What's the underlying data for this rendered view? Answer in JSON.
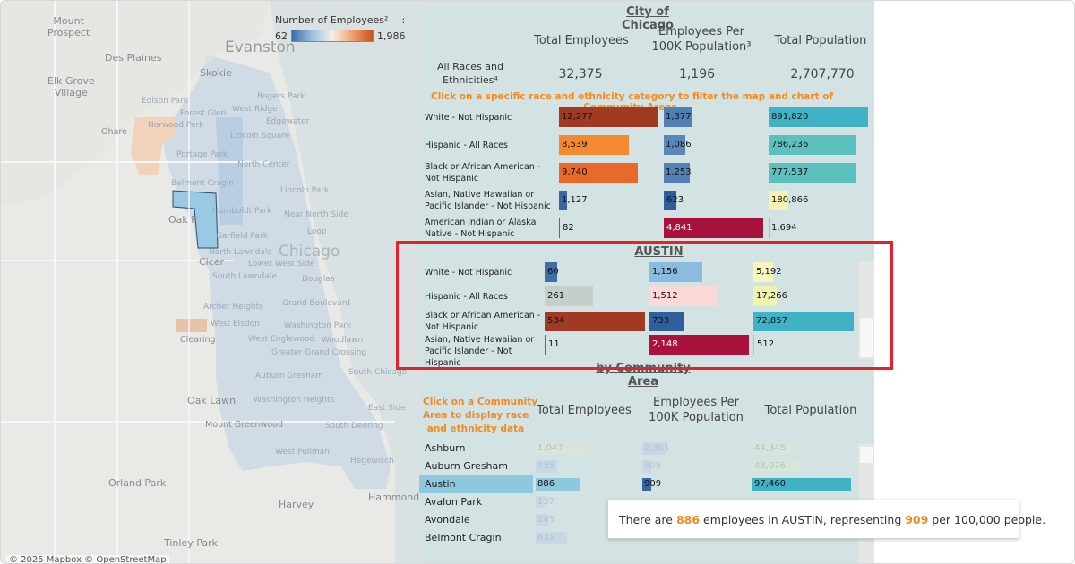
{
  "map": {
    "legend": {
      "title": "Number of Employees²",
      "colon": ":",
      "min": "62",
      "max": "1,986"
    },
    "place_labels": {
      "evanston": "Evanston",
      "chicago": "Chicago",
      "skokie": "Skokie",
      "des_plaines": "Des Plaines",
      "mount_prospect": "Mount\nProspect",
      "elk_grove": "Elk Grove\nVillage",
      "ohare": "Ohare",
      "oak_park": "Oak P",
      "cicero": "Cicer",
      "oak_lawn": "Oak Lawn",
      "orland_park": "Orland Park",
      "harvey": "Harvey",
      "hammond": "Hammond",
      "tinley_park": "Tinley Park",
      "mount_greenwood": "Mount Greenwood",
      "clearing": "Clearing"
    },
    "community_labels": {
      "edison_park": "Edison Park",
      "forest_glen": "Forest Glen",
      "norwood_park": "Norwood Park",
      "rogers_park": "Rogers Park",
      "west_ridge": "West Ridge",
      "edgewater": "Edgewater",
      "lincoln_square": "Lincoln Square",
      "portage_park": "Portage Park",
      "north_center": "North Center",
      "belmont_cragin": "Belmont Cragin",
      "lincoln_park": "Lincoln Park",
      "humboldt_park": "Humboldt Park",
      "near_north_side": "Near North Side",
      "garfield_park": "Garfield Park",
      "loop": "Loop",
      "north_lawndale": "North Lawndale",
      "lower_west_side": "Lower West Side",
      "south_lawndale": "South Lawndale",
      "douglas": "Douglas",
      "archer_heights": "Archer Heights",
      "grand_boulevard": "Grand Boulevard",
      "west_elsdon": "West Elsdon",
      "washington_park": "Washington Park",
      "west_englewood": "West Englewood",
      "woodlawn": "Woodlawn",
      "greater_grand_crossing": "Greater Grand Crossing",
      "auburn_gresham": "Auburn Gresham",
      "south_chicago": "South Chicago",
      "washington_heights": "Washington Heights",
      "east_side": "East Side",
      "south_deering": "South Deering",
      "west_pullman": "West Pullman",
      "hegewisch": "Hegewisch"
    },
    "attribution": "© 2025 Mapbox  © OpenStreetMap"
  },
  "city": {
    "title": "City of Chicago",
    "headers": {
      "total_employees": "Total Employees",
      "per_100k": "Employees Per\n100K Population³",
      "total_population": "Total Population"
    },
    "all_races_label": "All Races and\nEthnicities⁴",
    "all_races": {
      "employees": "32,375",
      "per_100k": "1,196",
      "population": "2,707,770"
    },
    "instruction": "Click on a specific race and ethnicity category to filter the map and chart of Community Areas.",
    "rows": [
      {
        "label": "White - Not Hispanic",
        "employees": "12,277",
        "per_100k": "1,377",
        "population": "891,820"
      },
      {
        "label": "Hispanic - All Races",
        "employees": "8,539",
        "per_100k": "1,086",
        "population": "786,236"
      },
      {
        "label": "Black or African American - Not Hispanic",
        "employees": "9,740",
        "per_100k": "1,253",
        "population": "777,537"
      },
      {
        "label": "Asian, Native Hawaiian or Pacific Islander - Not Hispanic",
        "employees": "1,127",
        "per_100k": "623",
        "population": "180,866"
      },
      {
        "label": "American Indian or Alaska Native - Not Hispanic",
        "employees": "82",
        "per_100k": "4,841",
        "population": "1,694"
      }
    ]
  },
  "austin": {
    "title": "AUSTIN",
    "rows": [
      {
        "label": "White - Not Hispanic",
        "employees": "60",
        "per_100k": "1,156",
        "population": "5,192"
      },
      {
        "label": "Hispanic - All Races",
        "employees": "261",
        "per_100k": "1,512",
        "population": "17,266"
      },
      {
        "label": "Black or African American - Not Hispanic",
        "employees": "534",
        "per_100k": "733",
        "population": "72,857"
      },
      {
        "label": "Asian, Native Hawaiian or Pacific Islander - Not Hispanic",
        "employees": "11",
        "per_100k": "2,148",
        "population": "512"
      }
    ]
  },
  "community": {
    "title": "by Community Area",
    "instruction": "Click on a Community\nArea to display race\nand ethnicity data",
    "headers": {
      "total_employees": "Total Employees",
      "per_100k": "Employees Per\n100K Population",
      "total_population": "Total Population"
    },
    "rows": [
      {
        "name": "Ashburn",
        "employees": "1,047",
        "per_100k": "2,361",
        "population": "44,345"
      },
      {
        "name": "Auburn Gresham",
        "employees": "435",
        "per_100k": "905",
        "population": "48,076"
      },
      {
        "name": "Austin",
        "employees": "886",
        "per_100k": "909",
        "population": "97,460",
        "selected": true
      },
      {
        "name": "Avalon Park",
        "employees": "137",
        "per_100k": "",
        "population": ""
      },
      {
        "name": "Avondale",
        "employees": "245",
        "per_100k": "",
        "population": ""
      },
      {
        "name": "Belmont Cragin",
        "employees": "631",
        "per_100k": "",
        "population": ""
      }
    ]
  },
  "tooltip": {
    "prefix": "There are ",
    "employees": "886",
    "mid1": " employees in ",
    "area": "AUSTIN",
    "mid2": ", representing ",
    "per_100k": "909",
    "suffix": " per 100,000 people."
  }
}
